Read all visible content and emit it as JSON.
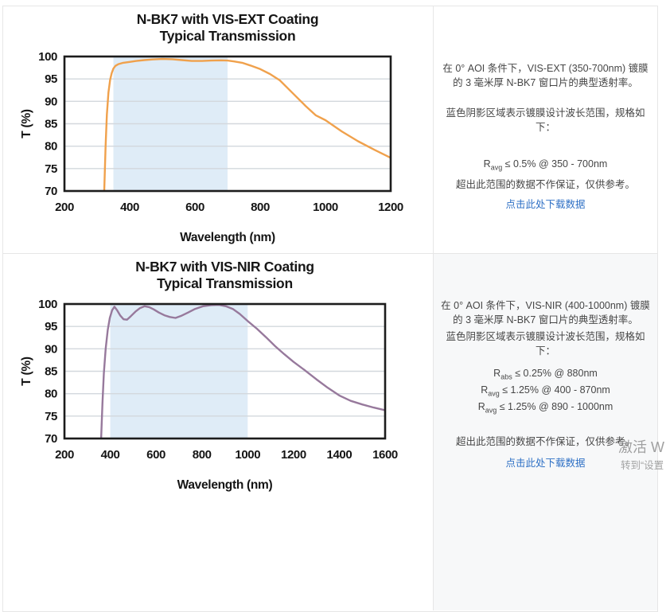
{
  "chart_data": [
    {
      "type": "line",
      "title": "N-BK7 with VIS-EXT Coating",
      "subtitle": "Typical Transmission",
      "xlabel": "Wavelength (nm)",
      "ylabel": "T (%)",
      "xlim": [
        200,
        1200
      ],
      "ylim": [
        70,
        100
      ],
      "xticks": [
        200,
        400,
        600,
        800,
        1000,
        1200
      ],
      "yticks": [
        70,
        75,
        80,
        85,
        90,
        95,
        100
      ],
      "grid": "horizontal",
      "legend": "none",
      "design_band_nm": [
        350,
        700
      ],
      "band_color": "#dfecf7",
      "line_color": "#f0a14c",
      "series": [
        {
          "name": "Typical Transmission",
          "x": [
            322,
            326,
            330,
            335,
            340,
            345,
            350,
            356,
            365,
            380,
            400,
            420,
            445,
            470,
            500,
            530,
            560,
            590,
            620,
            650,
            680,
            700,
            720,
            745,
            770,
            800,
            830,
            860,
            900,
            940,
            970,
            1000,
            1050,
            1100,
            1150,
            1200
          ],
          "y": [
            70,
            80,
            87,
            92,
            94.8,
            96.3,
            97.3,
            97.9,
            98.3,
            98.6,
            98.8,
            99,
            99.2,
            99.35,
            99.45,
            99.4,
            99.2,
            99,
            99,
            99.1,
            99.15,
            99.1,
            98.9,
            98.6,
            98,
            97.2,
            96.1,
            94.7,
            91.8,
            88.9,
            86.9,
            85.8,
            83.3,
            81.1,
            79.2,
            77.4
          ]
        }
      ]
    },
    {
      "type": "line",
      "title": "N-BK7 with VIS-NIR Coating",
      "subtitle": "Typical Transmission",
      "xlabel": "Wavelength (nm)",
      "ylabel": "T (%)",
      "xlim": [
        200,
        1600
      ],
      "ylim": [
        70,
        100
      ],
      "xticks": [
        200,
        400,
        600,
        800,
        1000,
        1200,
        1400,
        1600
      ],
      "yticks": [
        70,
        75,
        80,
        85,
        90,
        95,
        100
      ],
      "grid": "horizontal",
      "legend": "none",
      "design_band_nm": [
        400,
        1000
      ],
      "band_color": "#dfecf7",
      "line_color": "#97799c",
      "series": [
        {
          "name": "Typical Transmission",
          "x": [
            360,
            366,
            372,
            380,
            389,
            398,
            408,
            418,
            430,
            444,
            458,
            473,
            490,
            510,
            530,
            550,
            570,
            590,
            612,
            636,
            660,
            685,
            712,
            740,
            770,
            805,
            840,
            875,
            905,
            935,
            965,
            1000,
            1040,
            1080,
            1120,
            1160,
            1200,
            1250,
            1300,
            1350,
            1400,
            1450,
            1500,
            1550,
            1600
          ],
          "y": [
            70,
            78,
            84.5,
            90,
            94.2,
            96.9,
            98.6,
            99.4,
            98.6,
            97.4,
            96.6,
            96.5,
            97.3,
            98.3,
            99.1,
            99.5,
            99.3,
            98.8,
            98.1,
            97.5,
            97.1,
            96.9,
            97.4,
            98.1,
            98.9,
            99.5,
            99.75,
            99.8,
            99.5,
            98.9,
            97.8,
            96.2,
            94.5,
            92.6,
            90.6,
            88.8,
            87.1,
            85.2,
            83.2,
            81.3,
            79.6,
            78.4,
            77.6,
            76.9,
            76.3
          ]
        }
      ]
    }
  ],
  "panels": [
    {
      "description": "在 0° AOI 条件下，VIS-EXT (350-700nm) 镀膜的 3 毫米厚 N-BK7 窗口片的典型透射率。",
      "shading_note": "蓝色阴影区域表示镀膜设计波长范围，规格如下：",
      "specs": [
        {
          "base": "R",
          "sub": "avg",
          "rest": " ≤ 0.5% @ 350 - 700nm"
        }
      ],
      "disclaimer": "超出此范围的数据不作保证，仅供参考。",
      "download_link": "点击此处下载数据"
    },
    {
      "description": "在 0° AOI 条件下，VIS-NIR (400-1000nm) 镀膜的 3 毫米厚 N-BK7 窗口片的典型透射率。",
      "shading_note": "蓝色阴影区域表示镀膜设计波长范围，规格如下：",
      "specs": [
        {
          "base": "R",
          "sub": "abs",
          "rest": " ≤ 0.25% @ 880nm"
        },
        {
          "base": "R",
          "sub": "avg",
          "rest": " ≤ 1.25% @ 400 - 870nm"
        },
        {
          "base": "R",
          "sub": "avg",
          "rest": " ≤ 1.25% @ 890 - 1000nm"
        }
      ],
      "disclaimer": "超出此范围的数据不作保证，仅供参考。",
      "download_link": "点击此处下载数据"
    }
  ],
  "watermark": {
    "line1": "激活 W",
    "line2": "转到“设置"
  },
  "colors": {
    "vis_ext_curve": "#f0a14c",
    "vis_nir_curve": "#97799c",
    "design_band": "#dfecf7",
    "link": "#2e70c5",
    "card_border": "#e6e6e6"
  }
}
